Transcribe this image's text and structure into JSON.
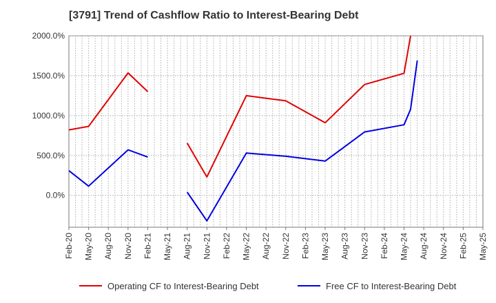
{
  "chart_data": {
    "type": "line",
    "title": "[3791]  Trend of Cashflow Ratio to Interest-Bearing Debt",
    "xlabel": "",
    "ylabel": "",
    "ylim": [
      -400,
      2000
    ],
    "y_ticks": [
      {
        "value": 2000,
        "label": "2000.0%"
      },
      {
        "value": 1500,
        "label": "1500.0%"
      },
      {
        "value": 1000,
        "label": "1000.0%"
      },
      {
        "value": 500,
        "label": "500.0%"
      },
      {
        "value": 0,
        "label": "0.0%"
      }
    ],
    "categories": [
      "Feb-20",
      "May-20",
      "Aug-20",
      "Nov-20",
      "Feb-21",
      "May-21",
      "Aug-21",
      "Nov-21",
      "Feb-22",
      "May-22",
      "Aug-22",
      "Nov-22",
      "Feb-23",
      "May-23",
      "Aug-23",
      "Nov-23",
      "Feb-24",
      "May-24",
      "Aug-24",
      "Nov-24",
      "Feb-25",
      "May-25"
    ],
    "series": [
      {
        "name": "Operating CF to Interest-Bearing Debt",
        "color": "#e00000",
        "points": [
          [
            0,
            820
          ],
          [
            1,
            865
          ],
          [
            3,
            1535
          ],
          [
            4,
            1300
          ],
          [
            null,
            null
          ],
          [
            6,
            655
          ],
          [
            7,
            230
          ],
          [
            9,
            1250
          ],
          [
            11,
            1185
          ],
          [
            13,
            910
          ],
          [
            15,
            1390
          ],
          [
            17,
            1530
          ],
          [
            17.33,
            2000
          ]
        ]
      },
      {
        "name": "Free CF to Interest-Bearing Debt",
        "color": "#0000e0",
        "points": [
          [
            0,
            310
          ],
          [
            1,
            115
          ],
          [
            3,
            570
          ],
          [
            4,
            480
          ],
          [
            null,
            null
          ],
          [
            6,
            40
          ],
          [
            7,
            -320
          ],
          [
            9,
            530
          ],
          [
            11,
            490
          ],
          [
            13,
            430
          ],
          [
            15,
            795
          ],
          [
            17,
            885
          ],
          [
            17.33,
            1080
          ],
          [
            17.67,
            1690
          ]
        ]
      }
    ]
  }
}
